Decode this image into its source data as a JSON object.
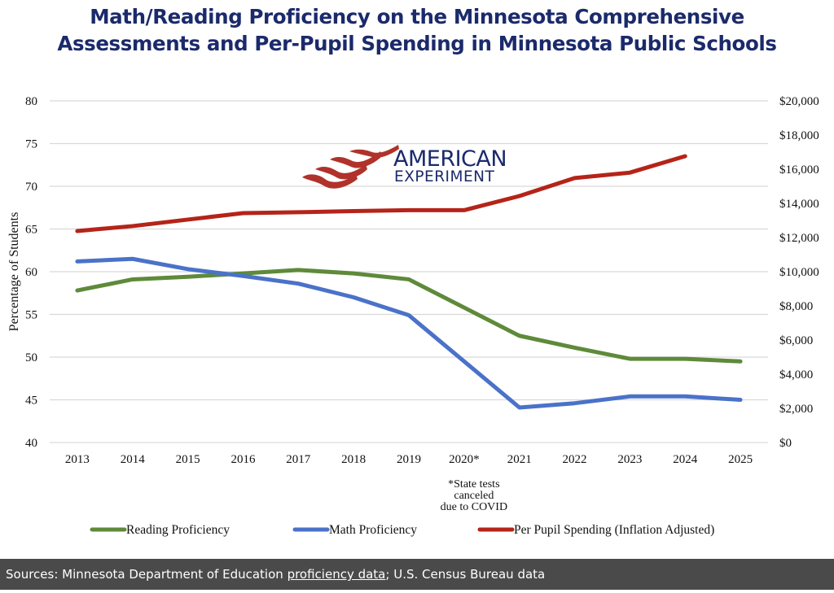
{
  "title": {
    "line1": "Math/Reading Proficiency on the Minnesota Comprehensive",
    "line2": "Assessments and Per-Pupil Spending in Minnesota Public Schools"
  },
  "logo": {
    "name": "american-experiment-logo-icon",
    "line1": "AMERICAN",
    "line2": "EXPERIMENT",
    "colors": {
      "flag": "#b0322a",
      "text": "#1b2a6b"
    }
  },
  "footer": {
    "prefix": "Sources: Minnesota Department of Education ",
    "link_text": "proficiency data",
    "suffix": "; U.S. Census Bureau data"
  },
  "chart_data": {
    "type": "line",
    "title": "Math/Reading Proficiency on the Minnesota Comprehensive Assessments and Per-Pupil Spending in Minnesota Public Schools",
    "xlabel": "",
    "ylabel": "Percentage of Students",
    "y2label": "",
    "categories": [
      "2013",
      "2014",
      "2015",
      "2016",
      "2017",
      "2018",
      "2019",
      "2020*",
      "2021",
      "2022",
      "2023",
      "2024",
      "2025"
    ],
    "ylim": [
      40,
      80
    ],
    "yticks": [
      "80",
      "75",
      "70",
      "65",
      "60",
      "55",
      "50",
      "45",
      "40"
    ],
    "ytick_values": [
      80,
      75,
      70,
      65,
      60,
      55,
      50,
      45,
      40
    ],
    "y2lim": [
      0,
      20000
    ],
    "y2ticks": [
      "$20,000",
      "$18,000",
      "$16,000",
      "$14,000",
      "$12,000",
      "$10,000",
      "$8,000",
      "$6,000",
      "$4,000",
      "$2,000",
      "$0"
    ],
    "y2tick_values": [
      20000,
      18000,
      16000,
      14000,
      12000,
      10000,
      8000,
      6000,
      4000,
      2000,
      0
    ],
    "grid": true,
    "legend_position": "bottom",
    "annotation": [
      "*State tests",
      "canceled",
      "due to COVID"
    ],
    "annotation_category": "2020*",
    "series": [
      {
        "name": "Reading Proficiency",
        "axis": "left",
        "color": "#5e8a3a",
        "values": [
          57.8,
          59.1,
          59.4,
          59.8,
          60.2,
          59.8,
          59.1,
          null,
          52.5,
          51.1,
          49.8,
          49.8,
          49.5
        ]
      },
      {
        "name": "Math Proficiency",
        "axis": "left",
        "color": "#4a72c8",
        "values": [
          61.2,
          61.5,
          60.3,
          59.5,
          58.6,
          57.0,
          54.9,
          null,
          44.1,
          44.6,
          45.4,
          45.4,
          45.0
        ]
      },
      {
        "name": "Per Pupil Spending (Inflation Adjusted)",
        "axis": "right",
        "color": "#b52419",
        "values": [
          12380,
          12670,
          13050,
          13430,
          13480,
          13550,
          13600,
          13600,
          14430,
          15480,
          15800,
          16760,
          null
        ]
      }
    ]
  }
}
